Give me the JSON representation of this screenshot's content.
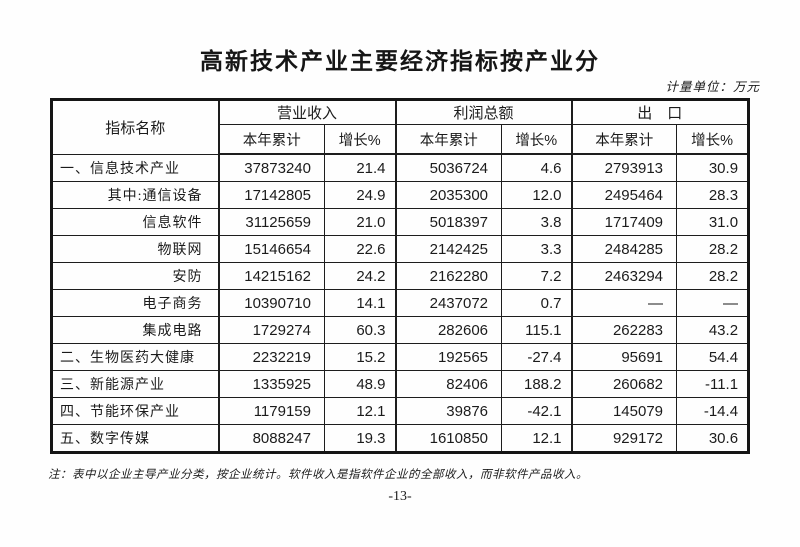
{
  "page": {
    "title": "高新技术产业主要经济指标按产业分",
    "unit_note": "计量单位：万元",
    "footnote": "注：表中以企业主导产业分类，按企业统计。软件收入是指软件企业的全部收入，而非软件产品收入。",
    "page_number": "-13-"
  },
  "table": {
    "corner_header": "指标名称",
    "groups": [
      {
        "label": "营业收入"
      },
      {
        "label": "利润总额"
      },
      {
        "label": "出　口"
      }
    ],
    "sub_headers": [
      "本年累计",
      "增长%",
      "本年累计",
      "增长%",
      "本年累计",
      "增长%"
    ],
    "rows": [
      {
        "label": "一、信息技术产业",
        "sub": false,
        "cells": [
          "37873240",
          "21.4",
          "5036724",
          "4.6",
          "2793913",
          "30.9"
        ]
      },
      {
        "label": "其中:通信设备",
        "sub": true,
        "cells": [
          "17142805",
          "24.9",
          "2035300",
          "12.0",
          "2495464",
          "28.3"
        ]
      },
      {
        "label": "信息软件",
        "sub": true,
        "cells": [
          "31125659",
          "21.0",
          "5018397",
          "3.8",
          "1717409",
          "31.0"
        ]
      },
      {
        "label": "物联网",
        "sub": true,
        "cells": [
          "15146654",
          "22.6",
          "2142425",
          "3.3",
          "2484285",
          "28.2"
        ]
      },
      {
        "label": "安防",
        "sub": true,
        "cells": [
          "14215162",
          "24.2",
          "2162280",
          "7.2",
          "2463294",
          "28.2"
        ]
      },
      {
        "label": "电子商务",
        "sub": true,
        "cells": [
          "10390710",
          "14.1",
          "2437072",
          "0.7",
          "—",
          "—"
        ]
      },
      {
        "label": "集成电路",
        "sub": true,
        "cells": [
          "1729274",
          "60.3",
          "282606",
          "115.1",
          "262283",
          "43.2"
        ]
      },
      {
        "label": "二、生物医药大健康",
        "sub": false,
        "cells": [
          "2232219",
          "15.2",
          "192565",
          "-27.4",
          "95691",
          "54.4"
        ]
      },
      {
        "label": "三、新能源产业",
        "sub": false,
        "cells": [
          "1335925",
          "48.9",
          "82406",
          "188.2",
          "260682",
          "-11.1"
        ]
      },
      {
        "label": "四、节能环保产业",
        "sub": false,
        "cells": [
          "1179159",
          "12.1",
          "39876",
          "-42.1",
          "145079",
          "-14.4"
        ]
      },
      {
        "label": "五、数字传媒",
        "sub": false,
        "cells": [
          "8088247",
          "19.3",
          "1610850",
          "12.1",
          "929172",
          "30.6"
        ]
      }
    ]
  }
}
